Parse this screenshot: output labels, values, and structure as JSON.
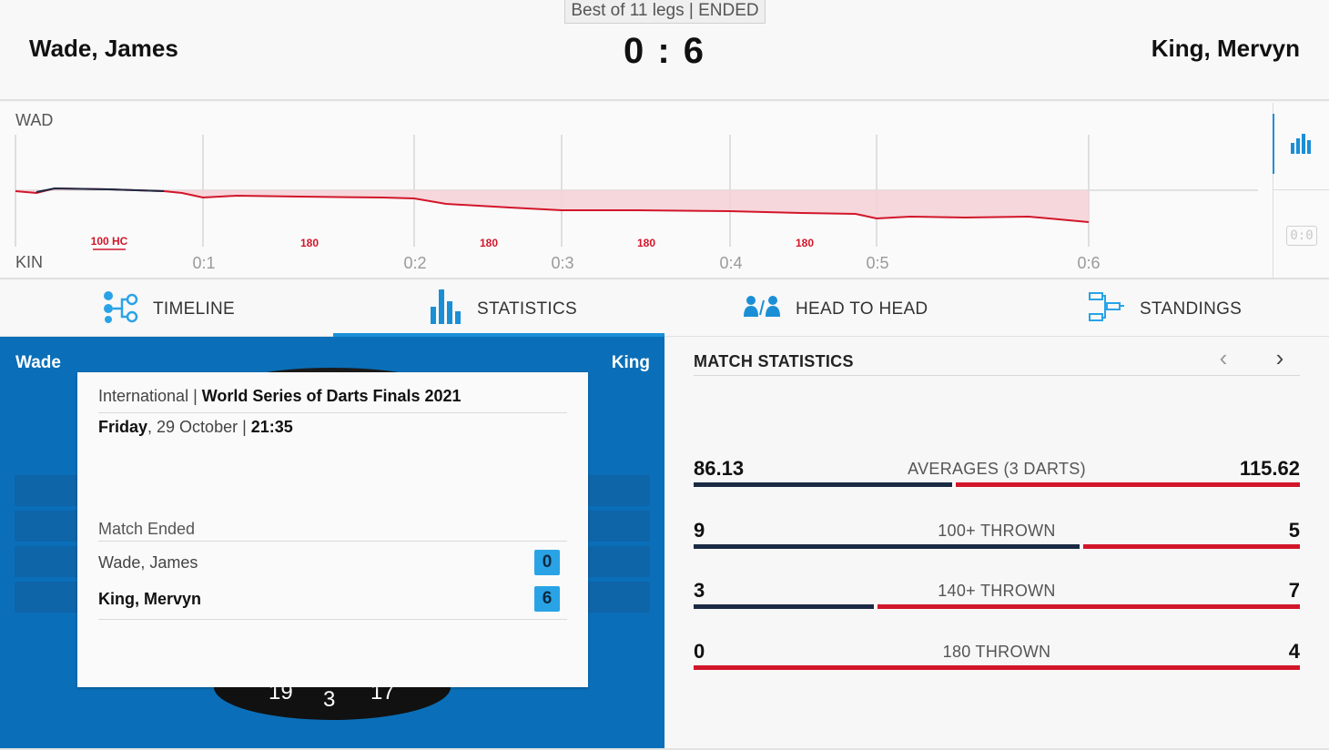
{
  "match": {
    "format": "Best of 11 legs | ENDED",
    "home_player": "Wade, James",
    "away_player": "King, Mervyn",
    "score": "0 : 6"
  },
  "chart": {
    "top_label": "WAD",
    "bottom_label": "KIN",
    "x_ticks": [
      "0:1",
      "0:2",
      "0:3",
      "0:4",
      "0:5",
      "0:6"
    ],
    "annotations": [
      "100 HC",
      "180",
      "180",
      "180",
      "180"
    ],
    "reset_button": "0:0",
    "icons": {
      "chart_toggle": "bar-chart-icon"
    }
  },
  "tabs": [
    {
      "label": "TIMELINE",
      "icon": "timeline-icon",
      "active": false
    },
    {
      "label": "STATISTICS",
      "icon": "statistics-icon",
      "active": true
    },
    {
      "label": "HEAD TO HEAD",
      "icon": "head-to-head-icon",
      "active": false
    },
    {
      "label": "STANDINGS",
      "icon": "standings-icon",
      "active": false
    }
  ],
  "board": {
    "left_name": "Wade",
    "right_name": "King",
    "numbers": [
      "19",
      "3",
      "17"
    ]
  },
  "card": {
    "competition_prefix": "International | ",
    "competition": "World Series of Darts Finals 2021",
    "date_day": "Friday",
    "date_rest": ", 29 October | ",
    "time": "21:35",
    "status": "Match Ended",
    "players": [
      {
        "name": "Wade, James",
        "legs": "0",
        "winner": false
      },
      {
        "name": "King, Mervyn",
        "legs": "6",
        "winner": true
      }
    ]
  },
  "stats": {
    "title": "MATCH STATISTICS",
    "nav_prev": "‹",
    "nav_next": "›",
    "rows": [
      {
        "label": "AVERAGES (3 DARTS)",
        "home": "86.13",
        "away": "115.62",
        "home_share": 0.43
      },
      {
        "label": "100+ THROWN",
        "home": "9",
        "away": "5",
        "home_share": 0.64
      },
      {
        "label": "140+ THROWN",
        "home": "3",
        "away": "7",
        "home_share": 0.3
      },
      {
        "label": "180 THROWN",
        "home": "0",
        "away": "4",
        "home_share": 0.0
      }
    ]
  },
  "colors": {
    "accent": "#1a8fd6",
    "home": "#1b2a44",
    "away": "#d2162a",
    "panel_blue": "#0a6fb8"
  }
}
